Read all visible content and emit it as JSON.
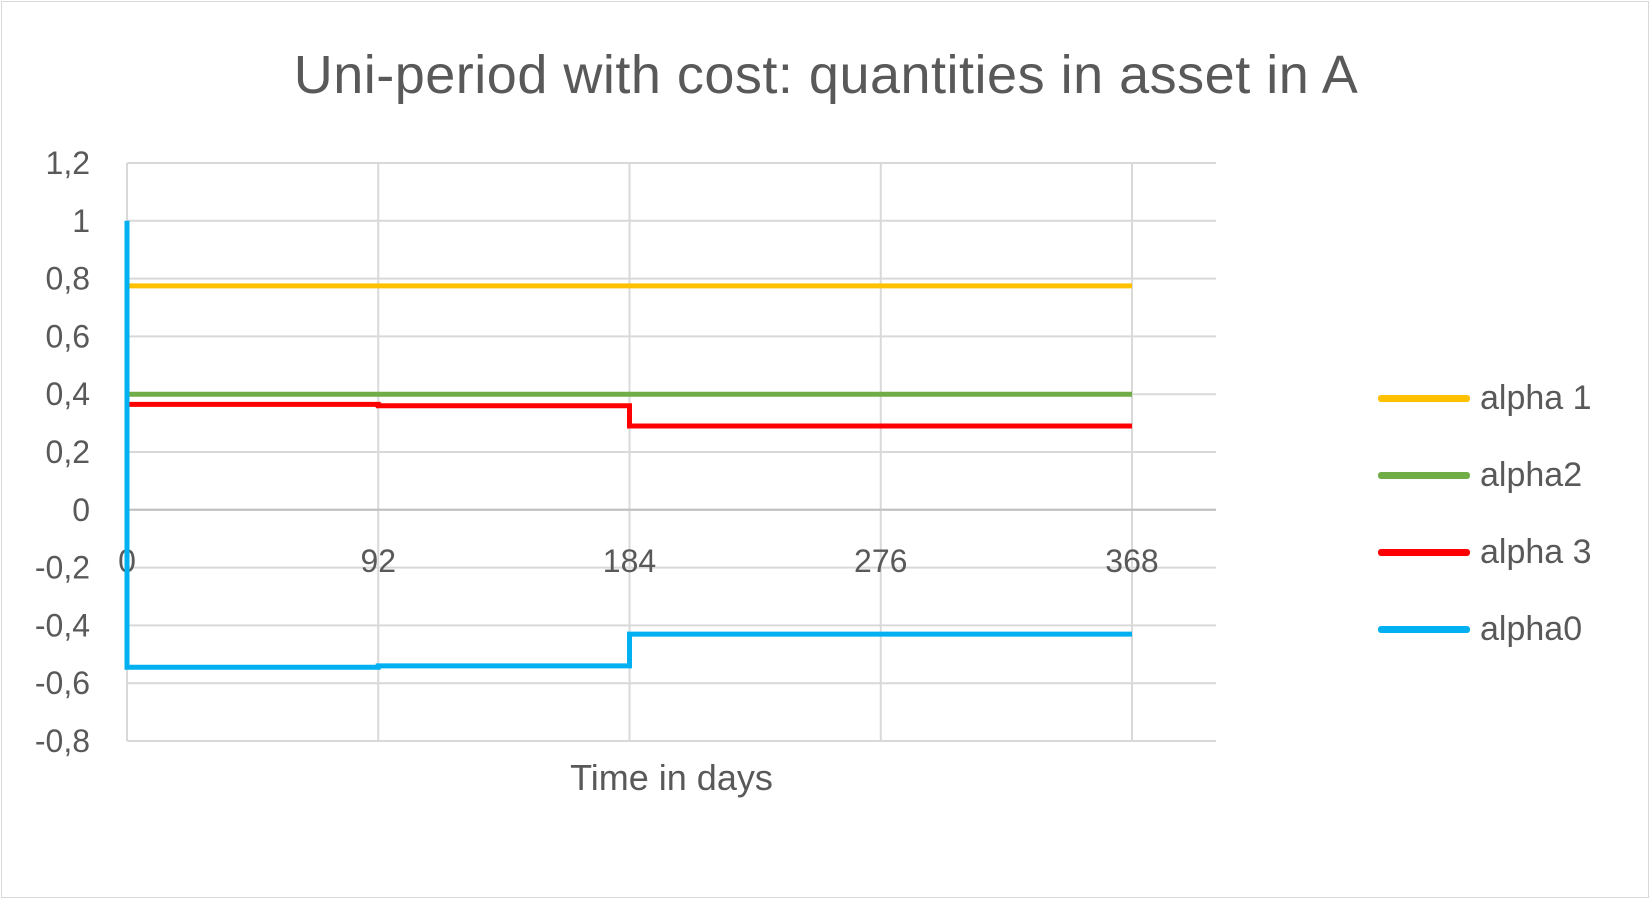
{
  "chart_data": {
    "type": "line",
    "title": "Uni-period with cost: quantities in asset in A",
    "xlabel": "Time in days",
    "ylabel": "",
    "x_ticks": [
      "0",
      "92",
      "184",
      "276",
      "368"
    ],
    "y_ticks": [
      "1,2",
      "1",
      "0,8",
      "0,6",
      "0,4",
      "0,2",
      "0",
      "-0,2",
      "-0,4",
      "-0,6",
      "-0,8"
    ],
    "xlim": [
      0,
      368
    ],
    "ylim": [
      -0.8,
      1.2
    ],
    "grid": true,
    "legend_position": "right",
    "step": true,
    "series": [
      {
        "name": "alpha 1",
        "color": "#FFC000",
        "x": [
          0,
          368
        ],
        "y": [
          0.775,
          0.775
        ]
      },
      {
        "name": "alpha2",
        "color": "#70AD47",
        "x": [
          0,
          368
        ],
        "y": [
          0.4,
          0.4
        ]
      },
      {
        "name": "alpha 3",
        "color": "#FF0000",
        "x": [
          0,
          92,
          184,
          368
        ],
        "y": [
          0.365,
          0.36,
          0.29,
          0.29
        ]
      },
      {
        "name": "alpha0",
        "color": "#00B0F0",
        "x": [
          0,
          0,
          92,
          184,
          368
        ],
        "y": [
          1.0,
          -0.545,
          -0.54,
          -0.43,
          -0.43
        ]
      }
    ]
  }
}
